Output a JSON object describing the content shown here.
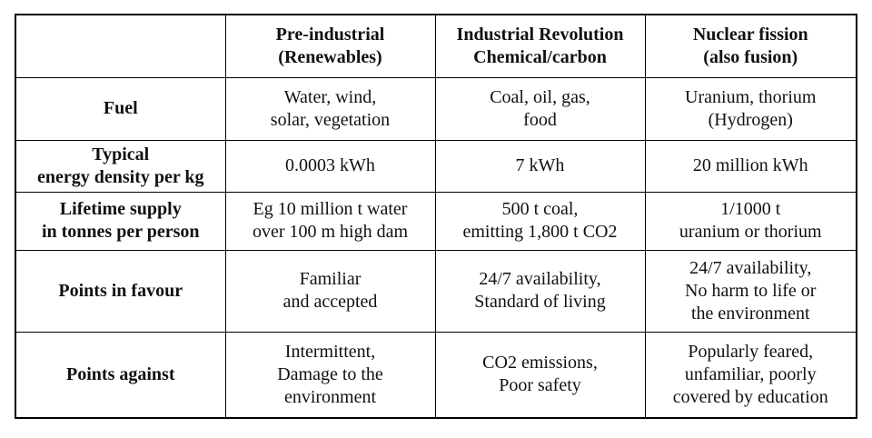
{
  "headers": [
    "",
    "Pre-industrial\n(Renewables)",
    "Industrial Revolution\nChemical/carbon",
    "Nuclear fission\n(also fusion)"
  ],
  "rows": [
    {
      "label": "Fuel",
      "cells": [
        "Water, wind,\nsolar, vegetation",
        "Coal, oil, gas,\nfood",
        "Uranium, thorium\n(Hydrogen)"
      ]
    },
    {
      "label": "Typical\nenergy density per kg",
      "cells": [
        "0.0003 kWh",
        "7 kWh",
        "20 million kWh"
      ]
    },
    {
      "label": "Lifetime supply\nin tonnes per person",
      "cells": [
        "Eg 10 million t water\nover 100 m high dam",
        "500 t coal,\nemitting 1,800 t CO2",
        "1/1000 t\nuranium or thorium"
      ]
    },
    {
      "label": "Points in favour",
      "cells": [
        "Familiar\nand accepted",
        "24/7 availability,\nStandard of living",
        "24/7 availability,\nNo harm to life or\nthe environment"
      ]
    },
    {
      "label": "Points against",
      "cells": [
        "Intermittent,\nDamage to the\nenvironment",
        "CO2 emissions,\nPoor safety",
        "Popularly feared,\nunfamiliar,   poorly\ncovered by education"
      ]
    }
  ]
}
